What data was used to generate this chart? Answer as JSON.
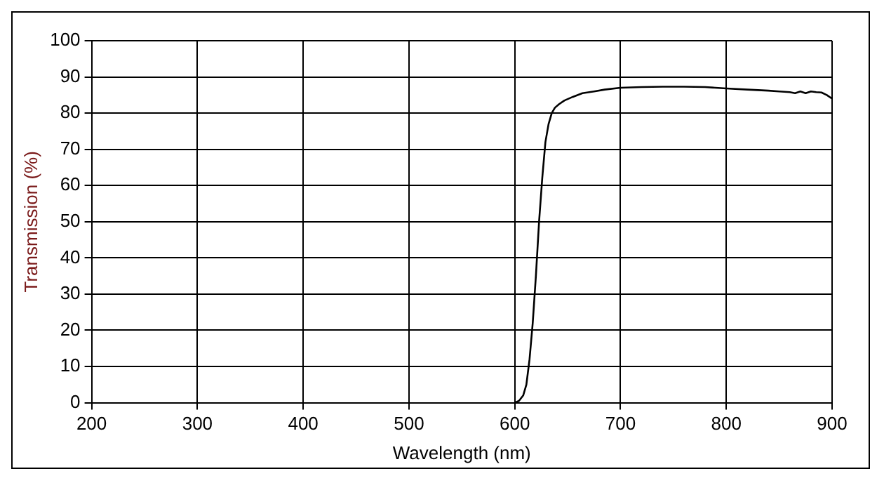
{
  "chart_data": {
    "type": "line",
    "xlabel": "Wavelength (nm)",
    "ylabel": "Transmission (%)",
    "xlim": [
      200,
      900
    ],
    "xticks": [
      200,
      300,
      400,
      500,
      600,
      700,
      800,
      900
    ],
    "ylim": [
      0,
      100
    ],
    "yticks": [
      0,
      10,
      20,
      30,
      40,
      50,
      60,
      70,
      80,
      90,
      100
    ],
    "grid": true,
    "legend": false,
    "marker": "none",
    "line_style": "solid",
    "series": [
      {
        "color": "#000000",
        "x": [
          600,
          604,
          608,
          611,
          614,
          617,
          620,
          623,
          626,
          629,
          632,
          635,
          638,
          642,
          647,
          655,
          664,
          675,
          685,
          700,
          720,
          740,
          760,
          780,
          800,
          820,
          840,
          850,
          860,
          865,
          870,
          875,
          880,
          885,
          890,
          895,
          900
        ],
        "values": [
          0,
          0.5,
          2,
          5,
          12,
          22,
          35,
          50,
          62,
          72,
          77,
          80,
          81.5,
          82.5,
          83.5,
          84.5,
          85.5,
          86,
          86.5,
          87,
          87.2,
          87.3,
          87.3,
          87.2,
          86.8,
          86.5,
          86.2,
          86,
          85.8,
          85.5,
          86,
          85.5,
          86,
          85.8,
          85.7,
          85,
          84
        ]
      }
    ]
  }
}
